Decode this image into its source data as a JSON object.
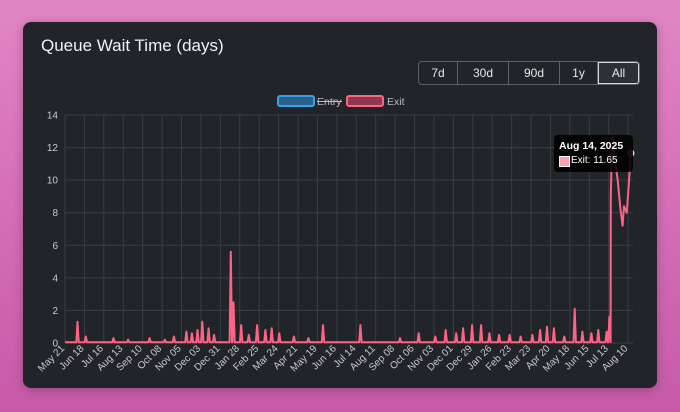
{
  "title": "Queue Wait Time (days)",
  "ranges": [
    "7d",
    "30d",
    "90d",
    "1y",
    "All"
  ],
  "active_range": "All",
  "tooltip": {
    "title": "Aug 14, 2025",
    "label": "Exit: 11.65"
  },
  "chart_data": {
    "type": "line",
    "x_axis": "time",
    "x_tick_labels": [
      "May 21",
      "Jun 18",
      "Jul 16",
      "Aug 13",
      "Sep 10",
      "Oct 08",
      "Nov 05",
      "Dec 03",
      "Dec 31",
      "Jan 28",
      "Feb 25",
      "Mar 24",
      "Apr 21",
      "May 19",
      "Jun 16",
      "Jul 14",
      "Aug 11",
      "Sep 08",
      "Oct 06",
      "Nov 03",
      "Dec 01",
      "Dec 29",
      "Jan 26",
      "Feb 23",
      "Mar 23",
      "Apr 20",
      "May 18",
      "Jun 15",
      "Jul 13",
      "Aug 10"
    ],
    "yticks": [
      0,
      2,
      4,
      6,
      8,
      10,
      12,
      14
    ],
    "ylim": [
      0,
      14
    ],
    "grid": true,
    "legend_position": "top",
    "series": [
      {
        "name": "Entry",
        "hidden": true,
        "color": "#36a2eb",
        "values": []
      },
      {
        "name": "Exit",
        "hidden": false,
        "color": "#ff6384",
        "spikes": [
          {
            "x": "2023-06-08",
            "y": 1.3
          },
          {
            "x": "2023-06-20",
            "y": 0.4
          },
          {
            "x": "2023-07-30",
            "y": 0.3
          },
          {
            "x": "2023-08-20",
            "y": 0.2
          },
          {
            "x": "2023-09-20",
            "y": 0.3
          },
          {
            "x": "2023-10-12",
            "y": 0.2
          },
          {
            "x": "2023-10-25",
            "y": 0.4
          },
          {
            "x": "2023-11-12",
            "y": 0.7
          },
          {
            "x": "2023-11-20",
            "y": 0.6
          },
          {
            "x": "2023-11-28",
            "y": 0.8
          },
          {
            "x": "2023-12-05",
            "y": 1.3
          },
          {
            "x": "2023-12-14",
            "y": 0.9
          },
          {
            "x": "2023-12-22",
            "y": 0.5
          },
          {
            "x": "2024-01-15",
            "y": 5.6
          },
          {
            "x": "2024-01-19",
            "y": 2.5
          },
          {
            "x": "2024-01-30",
            "y": 1.1
          },
          {
            "x": "2024-02-10",
            "y": 0.5
          },
          {
            "x": "2024-02-22",
            "y": 1.1
          },
          {
            "x": "2024-03-05",
            "y": 0.8
          },
          {
            "x": "2024-03-14",
            "y": 0.9
          },
          {
            "x": "2024-03-25",
            "y": 0.6
          },
          {
            "x": "2024-04-15",
            "y": 0.4
          },
          {
            "x": "2024-05-06",
            "y": 0.3
          },
          {
            "x": "2024-05-27",
            "y": 1.1
          },
          {
            "x": "2024-07-20",
            "y": 1.1
          },
          {
            "x": "2024-09-15",
            "y": 0.3
          },
          {
            "x": "2024-10-12",
            "y": 0.6
          },
          {
            "x": "2024-11-05",
            "y": 0.4
          },
          {
            "x": "2024-11-20",
            "y": 0.8
          },
          {
            "x": "2024-12-05",
            "y": 0.6
          },
          {
            "x": "2024-12-15",
            "y": 0.9
          },
          {
            "x": "2024-12-28",
            "y": 1.1
          },
          {
            "x": "2025-01-10",
            "y": 1.1
          },
          {
            "x": "2025-01-22",
            "y": 0.6
          },
          {
            "x": "2025-02-05",
            "y": 0.5
          },
          {
            "x": "2025-02-20",
            "y": 0.5
          },
          {
            "x": "2025-03-08",
            "y": 0.4
          },
          {
            "x": "2025-03-25",
            "y": 0.5
          },
          {
            "x": "2025-04-05",
            "y": 0.8
          },
          {
            "x": "2025-04-15",
            "y": 1.0
          },
          {
            "x": "2025-04-25",
            "y": 0.9
          },
          {
            "x": "2025-05-10",
            "y": 0.4
          },
          {
            "x": "2025-05-25",
            "y": 2.1
          },
          {
            "x": "2025-06-05",
            "y": 0.7
          },
          {
            "x": "2025-06-18",
            "y": 0.6
          },
          {
            "x": "2025-06-28",
            "y": 0.8
          },
          {
            "x": "2025-07-10",
            "y": 0.7
          },
          {
            "x": "2025-07-14",
            "y": 1.6
          }
        ],
        "tail": [
          {
            "x": "2025-07-16",
            "y": 9.0
          },
          {
            "x": "2025-07-17",
            "y": 11.0
          },
          {
            "x": "2025-07-18",
            "y": 12.7
          },
          {
            "x": "2025-07-20",
            "y": 12.0
          },
          {
            "x": "2025-07-22",
            "y": 11.2
          },
          {
            "x": "2025-07-26",
            "y": 10.0
          },
          {
            "x": "2025-07-30",
            "y": 8.2
          },
          {
            "x": "2025-08-02",
            "y": 7.2
          },
          {
            "x": "2025-08-04",
            "y": 8.4
          },
          {
            "x": "2025-08-08",
            "y": 8.0
          },
          {
            "x": "2025-08-12",
            "y": 10.4
          },
          {
            "x": "2025-08-14",
            "y": 11.65
          }
        ]
      }
    ]
  }
}
